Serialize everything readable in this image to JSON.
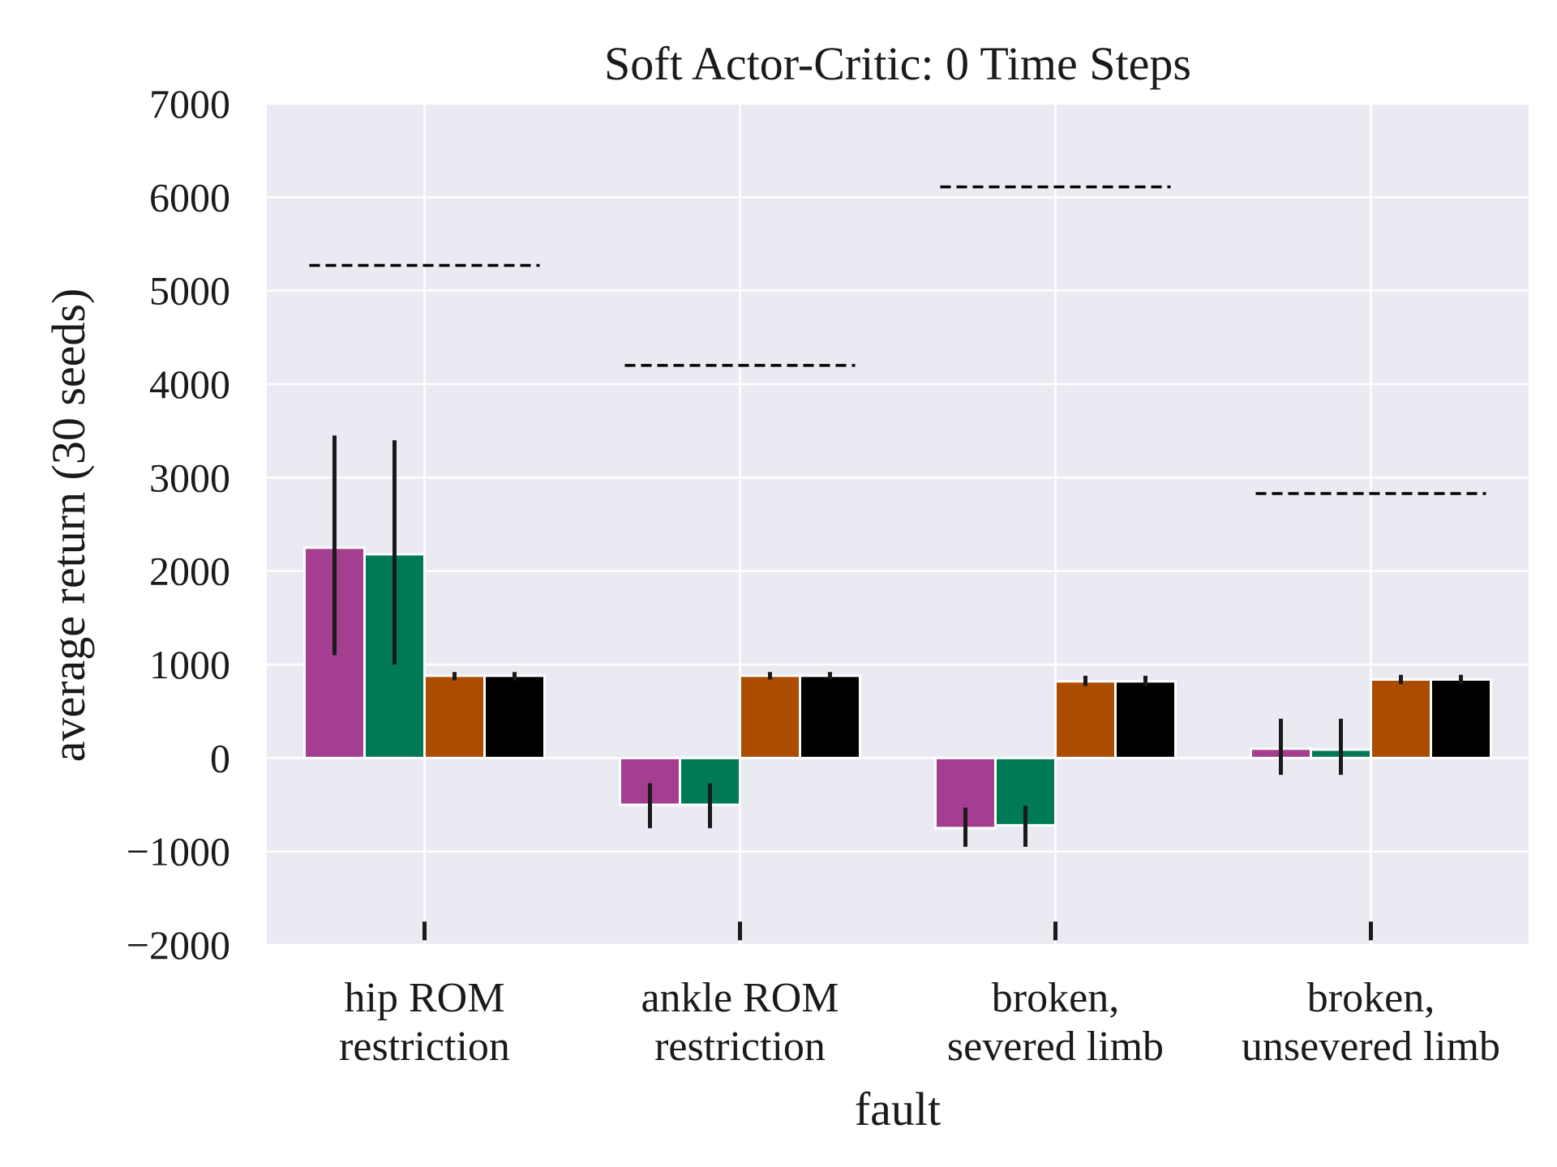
{
  "chart_data": {
    "type": "bar",
    "title": "Soft Actor-Critic: 0 Time Steps",
    "xlabel": "fault",
    "ylabel": "average return (30 seeds)",
    "ylim": [
      -2000,
      7000
    ],
    "yticks": [
      -2000,
      -1000,
      0,
      1000,
      2000,
      3000,
      4000,
      5000,
      6000,
      7000
    ],
    "ytick_labels": [
      "−2000",
      "−1000",
      "0",
      "1000",
      "2000",
      "3000",
      "4000",
      "5000",
      "6000",
      "7000"
    ],
    "grid": true,
    "categories": [
      [
        "hip ROM",
        "restriction"
      ],
      [
        "ankle ROM",
        "restriction"
      ],
      [
        "broken,",
        "severed limb"
      ],
      [
        "broken,",
        "unsevered limb"
      ]
    ],
    "series": [
      {
        "color": "#a43e90",
        "values": [
          2250,
          -500,
          -750,
          100
        ],
        "err_low": [
          1100,
          -750,
          -950,
          -180
        ],
        "err_high": [
          3450,
          -270,
          -530,
          420
        ]
      },
      {
        "color": "#007a56",
        "values": [
          2180,
          -500,
          -720,
          90
        ],
        "err_low": [
          1000,
          -750,
          -950,
          -180
        ],
        "err_high": [
          3400,
          -270,
          -510,
          420
        ]
      },
      {
        "color": "#ac4c00",
        "values": [
          880,
          880,
          820,
          840
        ],
        "err_low": [
          830,
          840,
          770,
          790
        ],
        "err_high": [
          920,
          920,
          880,
          890
        ]
      },
      {
        "color": "#000000",
        "values": [
          880,
          880,
          820,
          840
        ],
        "err_low": [
          830,
          840,
          770,
          790
        ],
        "err_high": [
          920,
          920,
          880,
          890
        ]
      }
    ],
    "reference_lines": [
      5270,
      4200,
      6110,
      2830
    ],
    "bottom_markers": {
      "low": -1950,
      "high": -1750
    },
    "colors": {
      "background": "#eaeaf2",
      "grid": "#ffffff",
      "error_bar": "#1a1a1a",
      "reference_line": "#000000"
    }
  }
}
